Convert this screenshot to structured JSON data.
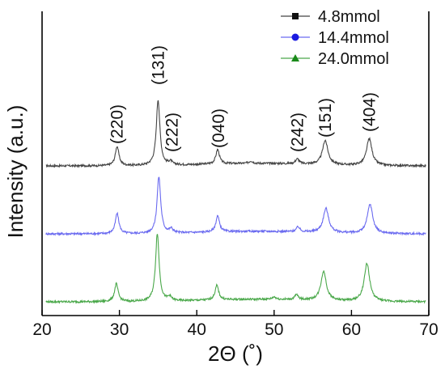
{
  "chart_data": {
    "type": "line",
    "xlabel": "2Θ (˚)",
    "ylabel": "Intensity (a.u.)",
    "xlim": [
      20,
      70
    ],
    "xticks": [
      20,
      30,
      40,
      50,
      60,
      70
    ],
    "grid": false,
    "legend_position": "top-right",
    "series": [
      {
        "name": "4.8mmol",
        "color": "#444444",
        "marker": "square",
        "baseline": 0.21,
        "peaks": [
          [
            29.7,
            0.24
          ],
          [
            35.0,
            0.81
          ],
          [
            36.6,
            0.04
          ],
          [
            42.7,
            0.18
          ],
          [
            47.0,
            0.03
          ],
          [
            53.0,
            0.06
          ],
          [
            56.6,
            0.3
          ],
          [
            62.3,
            0.33
          ]
        ]
      },
      {
        "name": "14.4mmol",
        "color": "#6a6af0",
        "marker": "circle",
        "baseline": 0.19,
        "peaks": [
          [
            29.7,
            0.25
          ],
          [
            35.1,
            0.7
          ],
          [
            36.7,
            0.05
          ],
          [
            42.7,
            0.2
          ],
          [
            53.1,
            0.06
          ],
          [
            56.7,
            0.3
          ],
          [
            62.4,
            0.36
          ]
        ]
      },
      {
        "name": "24.0mmol",
        "color": "#4aa84a",
        "marker": "triangle",
        "baseline": 0.0,
        "peaks": [
          [
            29.6,
            0.22
          ],
          [
            34.9,
            0.84
          ],
          [
            36.5,
            0.05
          ],
          [
            42.6,
            0.18
          ],
          [
            50.0,
            0.03
          ],
          [
            52.9,
            0.06
          ],
          [
            56.4,
            0.36
          ],
          [
            62.0,
            0.47
          ]
        ]
      }
    ],
    "annotations": [
      {
        "text": "(220)",
        "x": 29.7
      },
      {
        "text": "(131)",
        "x": 35.0
      },
      {
        "text": "(222)",
        "x": 36.8
      },
      {
        "text": "(040)",
        "x": 42.8
      },
      {
        "text": "(242)",
        "x": 53.0
      },
      {
        "text": "(151)",
        "x": 56.6
      },
      {
        "text": "(404)",
        "x": 62.3
      }
    ]
  }
}
